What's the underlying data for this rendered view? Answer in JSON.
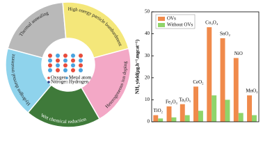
{
  "diagram": {
    "segments": [
      {
        "label": "Thermal annealing",
        "color": "#b9b9b9"
      },
      {
        "label": "High energy particle bombardment",
        "color": "#f4e77a"
      },
      {
        "label": "Heterogeneous ion doping",
        "color": "#f3a8c6"
      },
      {
        "label": "Wet chemical reduction",
        "color": "#3f7a3a"
      },
      {
        "label": "Hydrogen thermal treatment",
        "color": "#8fd3ec"
      }
    ],
    "legend": [
      "Oxygen",
      "Metal atom",
      "Nitrogen",
      "Hydrogen"
    ]
  },
  "chart_data": {
    "type": "bar",
    "y_label": "NH₃ yield(μg.h⁻¹.mgcat⁻¹)",
    "categories": [
      "TiO₂",
      "Fe₂O₃",
      "Ta₃O₅",
      "CeO₂",
      "Co₃O₄",
      "SnO₂",
      "NiO",
      "MnO₂"
    ],
    "series": [
      {
        "name": "OVs",
        "color": "#f08a4b",
        "values": [
          3,
          7,
          8,
          16,
          43,
          38,
          29,
          12
        ]
      },
      {
        "name": "Without OVs",
        "color": "#8fd46a",
        "values": [
          1.5,
          2,
          3,
          5,
          12,
          10,
          4,
          3
        ]
      }
    ],
    "ylim": [
      0,
      50
    ],
    "yticks": [
      0,
      10,
      20,
      30,
      40,
      50
    ]
  }
}
